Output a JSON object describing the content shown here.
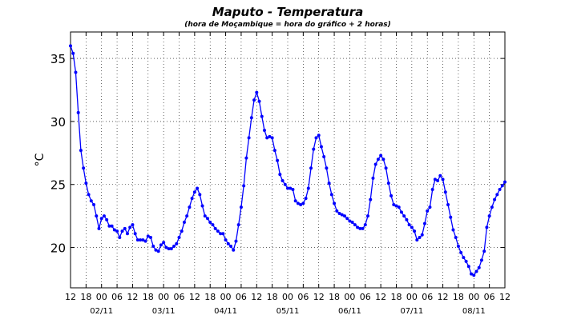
{
  "chart_data": {
    "type": "line",
    "title": "Maputo - Temperatura",
    "subtitle": "(hora de Moçambique = hora do gráfico + 2 horas)",
    "ylabel": "°C",
    "grid": true,
    "xlim": [
      0,
      168
    ],
    "ylim": [
      16.8,
      37.1
    ],
    "yticks": [
      20,
      25,
      30,
      35
    ],
    "xticks": [
      {
        "value": 0,
        "label": "12"
      },
      {
        "value": 6,
        "label": "18"
      },
      {
        "value": 12,
        "label": "00"
      },
      {
        "value": 18,
        "label": "06"
      },
      {
        "value": 24,
        "label": "12"
      },
      {
        "value": 30,
        "label": "18"
      },
      {
        "value": 36,
        "label": "00"
      },
      {
        "value": 42,
        "label": "06"
      },
      {
        "value": 48,
        "label": "12"
      },
      {
        "value": 54,
        "label": "18"
      },
      {
        "value": 60,
        "label": "00"
      },
      {
        "value": 66,
        "label": "06"
      },
      {
        "value": 72,
        "label": "12"
      },
      {
        "value": 78,
        "label": "18"
      },
      {
        "value": 84,
        "label": "00"
      },
      {
        "value": 90,
        "label": "06"
      },
      {
        "value": 96,
        "label": "12"
      },
      {
        "value": 102,
        "label": "18"
      },
      {
        "value": 108,
        "label": "00"
      },
      {
        "value": 114,
        "label": "06"
      },
      {
        "value": 120,
        "label": "12"
      },
      {
        "value": 126,
        "label": "18"
      },
      {
        "value": 132,
        "label": "00"
      },
      {
        "value": 138,
        "label": "06"
      },
      {
        "value": 144,
        "label": "12"
      },
      {
        "value": 150,
        "label": "18"
      },
      {
        "value": 156,
        "label": "00"
      },
      {
        "value": 162,
        "label": "06"
      },
      {
        "value": 168,
        "label": "12"
      }
    ],
    "date_ticks": [
      {
        "value": 12,
        "label": "02/11"
      },
      {
        "value": 36,
        "label": "03/11"
      },
      {
        "value": 60,
        "label": "04/11"
      },
      {
        "value": 84,
        "label": "05/11"
      },
      {
        "value": 108,
        "label": "06/11"
      },
      {
        "value": 132,
        "label": "07/11"
      },
      {
        "value": 156,
        "label": "08/11"
      }
    ],
    "x": [
      0,
      1,
      2,
      3,
      4,
      5,
      6,
      7,
      8,
      9,
      10,
      11,
      12,
      13,
      14,
      15,
      16,
      17,
      18,
      19,
      20,
      21,
      22,
      23,
      24,
      25,
      26,
      27,
      28,
      29,
      30,
      31,
      32,
      33,
      34,
      35,
      36,
      37,
      38,
      39,
      40,
      41,
      42,
      43,
      44,
      45,
      46,
      47,
      48,
      49,
      50,
      51,
      52,
      53,
      54,
      55,
      56,
      57,
      58,
      59,
      60,
      61,
      62,
      63,
      64,
      65,
      66,
      67,
      68,
      69,
      70,
      71,
      72,
      73,
      74,
      75,
      76,
      77,
      78,
      79,
      80,
      81,
      82,
      83,
      84,
      85,
      86,
      87,
      88,
      89,
      90,
      91,
      92,
      93,
      94,
      95,
      96,
      97,
      98,
      99,
      100,
      101,
      102,
      103,
      104,
      105,
      106,
      107,
      108,
      109,
      110,
      111,
      112,
      113,
      114,
      115,
      116,
      117,
      118,
      119,
      120,
      121,
      122,
      123,
      124,
      125,
      126,
      127,
      128,
      129,
      130,
      131,
      132,
      133,
      134,
      135,
      136,
      137,
      138,
      139,
      140,
      141,
      142,
      143,
      144,
      145,
      146,
      147,
      148,
      149,
      150,
      151,
      152,
      153,
      154,
      155,
      156,
      157,
      158,
      159,
      160,
      161,
      162,
      163,
      164,
      165,
      166,
      167,
      168
    ],
    "series": [
      {
        "color": "#0000ff",
        "values": [
          36.0,
          35.4,
          33.9,
          30.7,
          27.7,
          26.3,
          25.1,
          24.2,
          23.7,
          23.4,
          22.5,
          21.5,
          22.3,
          22.5,
          22.2,
          21.7,
          21.7,
          21.4,
          21.3,
          20.8,
          21.3,
          21.5,
          21.1,
          21.6,
          21.8,
          21.1,
          20.6,
          20.6,
          20.6,
          20.5,
          20.9,
          20.8,
          20.1,
          19.8,
          19.7,
          20.2,
          20.4,
          20.0,
          19.9,
          19.9,
          20.1,
          20.3,
          20.8,
          21.3,
          22.0,
          22.5,
          23.2,
          23.9,
          24.4,
          24.7,
          24.2,
          23.3,
          22.5,
          22.3,
          22.0,
          21.8,
          21.5,
          21.3,
          21.1,
          21.1,
          20.6,
          20.3,
          20.1,
          19.8,
          20.5,
          21.8,
          23.2,
          24.9,
          27.1,
          28.7,
          30.3,
          31.7,
          32.3,
          31.6,
          30.4,
          29.3,
          28.7,
          28.8,
          28.7,
          27.7,
          26.9,
          25.8,
          25.3,
          25.0,
          24.7,
          24.7,
          24.6,
          23.7,
          23.5,
          23.4,
          23.5,
          23.9,
          24.7,
          26.3,
          27.8,
          28.7,
          28.9,
          28.0,
          27.2,
          26.3,
          25.1,
          24.2,
          23.5,
          22.9,
          22.7,
          22.6,
          22.5,
          22.3,
          22.1,
          22.0,
          21.8,
          21.6,
          21.5,
          21.5,
          21.8,
          22.5,
          23.8,
          25.5,
          26.6,
          27.0,
          27.3,
          27.0,
          26.3,
          25.1,
          24.1,
          23.4,
          23.3,
          23.2,
          22.8,
          22.5,
          22.2,
          21.8,
          21.6,
          21.3,
          20.6,
          20.8,
          21.0,
          21.9,
          22.9,
          23.2,
          24.6,
          25.4,
          25.3,
          25.7,
          25.4,
          24.4,
          23.4,
          22.4,
          21.4,
          20.8,
          20.1,
          19.6,
          19.2,
          18.9,
          18.5,
          17.9,
          17.8,
          18.1,
          18.4,
          19.0,
          19.7,
          21.6,
          22.5,
          23.2,
          23.8,
          24.2,
          24.6,
          24.9,
          25.2
        ]
      }
    ]
  }
}
